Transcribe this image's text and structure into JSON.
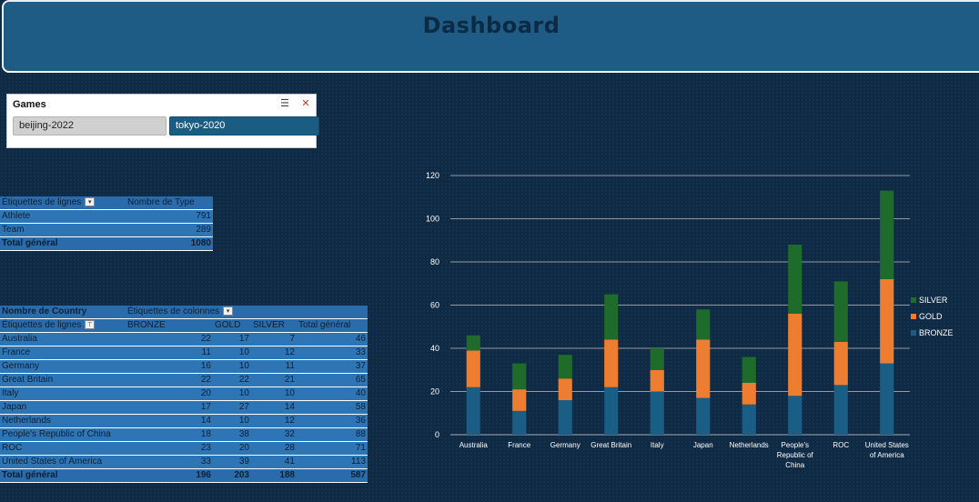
{
  "header": {
    "title": "Dashboard"
  },
  "slicer": {
    "title": "Games",
    "multi_select_icon": "multi-select-icon",
    "clear_filter_icon": "clear-filter-icon",
    "items": [
      {
        "label": "beijing-2022",
        "selected": false
      },
      {
        "label": "tokyo-2020",
        "selected": true
      }
    ]
  },
  "pivot1": {
    "row_label": "Étiquettes de lignes",
    "value_label": "Nombre de Type",
    "rows": [
      {
        "label": "Athlete",
        "value": "791"
      },
      {
        "label": "Team",
        "value": "289"
      }
    ],
    "total_label": "Total général",
    "total_value": "1080"
  },
  "pivot2": {
    "measure": "Nombre de Country",
    "col_label": "Étiquettes de colonnes",
    "row_label": "Étiquettes de lignes",
    "columns": [
      "BRONZE",
      "GOLD",
      "SILVER",
      "Total général"
    ],
    "rows": [
      {
        "label": "Australia",
        "values": [
          "22",
          "17",
          "7",
          "46"
        ]
      },
      {
        "label": "France",
        "values": [
          "11",
          "10",
          "12",
          "33"
        ]
      },
      {
        "label": "Germany",
        "values": [
          "16",
          "10",
          "11",
          "37"
        ]
      },
      {
        "label": "Great Britain",
        "values": [
          "22",
          "22",
          "21",
          "65"
        ]
      },
      {
        "label": "Italy",
        "values": [
          "20",
          "10",
          "10",
          "40"
        ]
      },
      {
        "label": "Japan",
        "values": [
          "17",
          "27",
          "14",
          "58"
        ]
      },
      {
        "label": "Netherlands",
        "values": [
          "14",
          "10",
          "12",
          "36"
        ]
      },
      {
        "label": "People's Republic of China",
        "values": [
          "18",
          "38",
          "32",
          "88"
        ]
      },
      {
        "label": "ROC",
        "values": [
          "23",
          "20",
          "28",
          "71"
        ]
      },
      {
        "label": "United States of America",
        "values": [
          "33",
          "39",
          "41",
          "113"
        ]
      }
    ],
    "total_label": "Total général",
    "totals": [
      "196",
      "203",
      "188",
      "587"
    ]
  },
  "chart_data": {
    "type": "bar",
    "stacked": true,
    "categories": [
      "Australia",
      "France",
      "Germany",
      "Great Britain",
      "Italy",
      "Japan",
      "Netherlands",
      "People's Republic of China",
      "ROC",
      "United States of America"
    ],
    "category_lines": [
      [
        "Australia"
      ],
      [
        "France"
      ],
      [
        "Germany"
      ],
      [
        "Great Britain"
      ],
      [
        "Italy"
      ],
      [
        "Japan"
      ],
      [
        "Netherlands"
      ],
      [
        "People's",
        "Republic of",
        "China"
      ],
      [
        "ROC"
      ],
      [
        "United States",
        "of America"
      ]
    ],
    "series": [
      {
        "name": "BRONZE",
        "color": "#1b5e85",
        "values": [
          22,
          11,
          16,
          22,
          20,
          17,
          14,
          18,
          23,
          33
        ]
      },
      {
        "name": "GOLD",
        "color": "#ed7d31",
        "values": [
          17,
          10,
          10,
          22,
          10,
          27,
          10,
          38,
          20,
          39
        ]
      },
      {
        "name": "SILVER",
        "color": "#1e6b2c",
        "values": [
          7,
          12,
          11,
          21,
          10,
          14,
          12,
          32,
          28,
          41
        ]
      }
    ],
    "ylim": [
      0,
      120
    ],
    "yticks": [
      0,
      20,
      40,
      60,
      80,
      100,
      120
    ],
    "grid": true,
    "legend": "right",
    "legend_order": [
      "SILVER",
      "GOLD",
      "BRONZE"
    ]
  }
}
